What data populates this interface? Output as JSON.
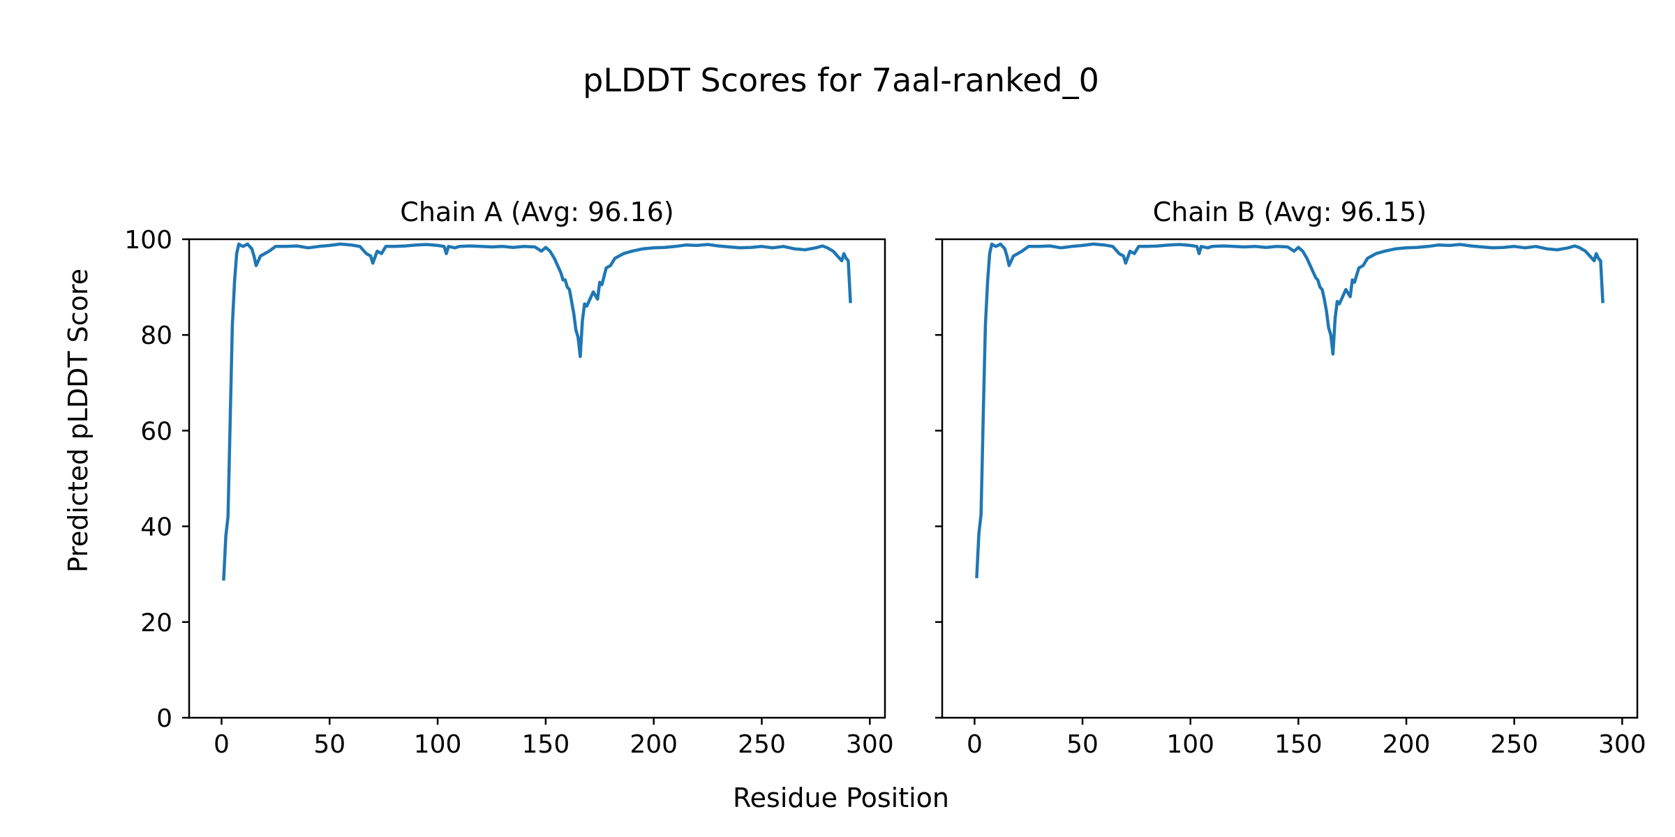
{
  "title": "pLDDT Scores for 7aal-ranked_0",
  "xlabel": "Residue Position",
  "ylabel": "Predicted pLDDT Score",
  "line_color": "#1f77b4",
  "chart_data": [
    {
      "type": "line",
      "title": "Chain A (Avg: 96.16)",
      "xlim": [
        -15,
        307
      ],
      "ylim": [
        0,
        100
      ],
      "xticks": [
        0,
        50,
        100,
        150,
        200,
        250,
        300
      ],
      "yticks": [
        0,
        20,
        40,
        60,
        80,
        100
      ],
      "show_ytick_labels": true,
      "grid": false,
      "series": [
        {
          "x": [
            1,
            2,
            3,
            4,
            5,
            6,
            7,
            8,
            9,
            10,
            12,
            14,
            15,
            16,
            18,
            20,
            22,
            25,
            30,
            35,
            40,
            45,
            50,
            55,
            60,
            64,
            67,
            69,
            70,
            72,
            74,
            76,
            80,
            85,
            90,
            95,
            100,
            103,
            104,
            105,
            108,
            110,
            115,
            120,
            125,
            130,
            135,
            140,
            145,
            148,
            150,
            152,
            154,
            155,
            157,
            158,
            159,
            160,
            161,
            162,
            163,
            164,
            165,
            166,
            167,
            168,
            169,
            170,
            172,
            174,
            175,
            176,
            178,
            180,
            182,
            184,
            186,
            190,
            195,
            200,
            205,
            210,
            215,
            220,
            225,
            230,
            235,
            240,
            245,
            250,
            255,
            260,
            265,
            270,
            275,
            278,
            280,
            283,
            285,
            286,
            287,
            288,
            289,
            290,
            291
          ],
          "y": [
            29,
            38,
            42,
            62,
            82,
            91,
            97,
            99,
            98.7,
            98.5,
            99,
            98,
            96.5,
            94.5,
            96.5,
            97,
            97.5,
            98.5,
            98.5,
            98.6,
            98.2,
            98.5,
            98.7,
            99,
            98.8,
            98.5,
            97,
            96.5,
            95,
            97.5,
            97,
            98.5,
            98.5,
            98.6,
            98.8,
            98.9,
            98.7,
            98.5,
            97,
            98.5,
            98.2,
            98.5,
            98.6,
            98.5,
            98.4,
            98.5,
            98.3,
            98.5,
            98.4,
            97.5,
            98.3,
            97.5,
            96,
            95,
            93,
            91.5,
            91.5,
            90,
            89.5,
            87,
            84.5,
            81,
            79.5,
            75.5,
            83,
            86.5,
            86,
            87,
            89,
            87.5,
            91,
            90.5,
            94,
            94.5,
            96,
            96.5,
            97,
            97.5,
            98,
            98.2,
            98.3,
            98.5,
            98.8,
            98.7,
            98.9,
            98.6,
            98.4,
            98.2,
            98.3,
            98.5,
            98.2,
            98.5,
            98,
            97.8,
            98.2,
            98.6,
            98.3,
            97.5,
            96.5,
            96,
            95.5,
            97,
            96,
            95.5,
            87
          ]
        }
      ]
    },
    {
      "type": "line",
      "title": "Chain B (Avg: 96.15)",
      "xlim": [
        -15,
        307
      ],
      "ylim": [
        0,
        100
      ],
      "xticks": [
        0,
        50,
        100,
        150,
        200,
        250,
        300
      ],
      "yticks": [
        0,
        20,
        40,
        60,
        80,
        100
      ],
      "show_ytick_labels": false,
      "grid": false,
      "series": [
        {
          "x": [
            1,
            2,
            3,
            4,
            5,
            6,
            7,
            8,
            9,
            10,
            12,
            14,
            15,
            16,
            18,
            20,
            22,
            25,
            30,
            35,
            40,
            45,
            50,
            55,
            60,
            64,
            67,
            69,
            70,
            72,
            74,
            76,
            80,
            85,
            90,
            95,
            100,
            103,
            104,
            105,
            108,
            110,
            115,
            120,
            125,
            130,
            135,
            140,
            145,
            148,
            150,
            152,
            154,
            155,
            157,
            158,
            159,
            160,
            161,
            162,
            163,
            164,
            165,
            166,
            167,
            168,
            169,
            170,
            172,
            174,
            175,
            176,
            178,
            180,
            182,
            184,
            186,
            190,
            195,
            200,
            205,
            210,
            215,
            220,
            225,
            230,
            235,
            240,
            245,
            250,
            255,
            260,
            265,
            270,
            275,
            278,
            280,
            283,
            285,
            286,
            287,
            288,
            289,
            290,
            291
          ],
          "y": [
            29.5,
            38.5,
            42.5,
            63,
            82,
            91,
            97,
            99,
            98.7,
            98.5,
            99,
            98,
            96.5,
            94.5,
            96.5,
            97,
            97.5,
            98.5,
            98.5,
            98.6,
            98.2,
            98.5,
            98.7,
            99,
            98.8,
            98.5,
            97,
            96.5,
            95,
            97.5,
            97,
            98.5,
            98.5,
            98.6,
            98.8,
            98.9,
            98.7,
            98.5,
            97,
            98.5,
            98.2,
            98.5,
            98.6,
            98.5,
            98.4,
            98.5,
            98.3,
            98.5,
            98.4,
            97.5,
            98.3,
            97.5,
            96,
            95,
            93,
            92,
            91.5,
            90,
            89.5,
            87.5,
            85,
            81.5,
            80,
            76,
            83.5,
            87,
            86.5,
            87.5,
            89.5,
            88,
            91.5,
            91,
            94,
            94.5,
            96,
            96.5,
            97,
            97.5,
            98,
            98.2,
            98.3,
            98.5,
            98.8,
            98.7,
            98.9,
            98.6,
            98.4,
            98.2,
            98.3,
            98.5,
            98.2,
            98.5,
            98,
            97.8,
            98.2,
            98.6,
            98.3,
            97.5,
            96.5,
            96,
            95.5,
            97,
            96,
            95.5,
            87
          ]
        }
      ]
    }
  ]
}
